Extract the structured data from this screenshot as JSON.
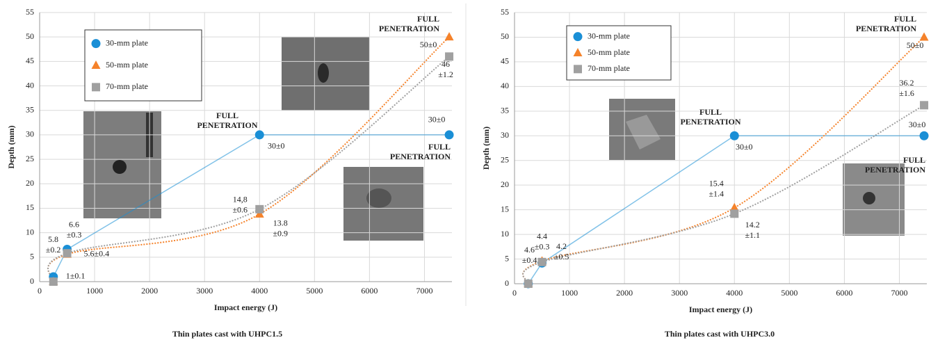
{
  "chart_data": [
    {
      "type": "line",
      "title": "Thin plates cast with UHPC1.5",
      "x_label": "Impact energy (J)",
      "y_label": "Depth (mm)",
      "xlim": [
        0,
        7500
      ],
      "xticks": [
        0,
        1000,
        2000,
        3000,
        4000,
        5000,
        6000,
        7000
      ],
      "ylim": [
        0,
        55
      ],
      "yticks": [
        0,
        5,
        10,
        15,
        20,
        25,
        30,
        35,
        40,
        45,
        50,
        55
      ],
      "grid": true,
      "series": [
        {
          "name": "30-mm plate",
          "color": "#1a8fd6",
          "marker": "circle",
          "line_style": "solid",
          "x": [
            250,
            500,
            4000,
            7450
          ],
          "values": [
            1,
            6.6,
            30,
            30
          ],
          "value_labels": [
            [
              "1±0.1"
            ],
            [
              "6.6",
              "±0.3"
            ],
            [
              "30±0"
            ],
            [
              "30±0"
            ]
          ]
        },
        {
          "name": "50-mm plate",
          "color": "#f5822a",
          "marker": "triangle",
          "line_style": "dotted",
          "x": [
            250,
            500,
            4000,
            7450
          ],
          "values": [
            0,
            5.6,
            13.8,
            50
          ],
          "value_labels": [
            null,
            [
              "5.6±0.4"
            ],
            [
              "13.8",
              "±0.9"
            ],
            [
              "50±0"
            ]
          ]
        },
        {
          "name": "70-mm plate",
          "color": "#a0a0a0",
          "marker": "square",
          "line_style": "dotted",
          "x": [
            250,
            500,
            4000,
            7450
          ],
          "values": [
            0,
            5.8,
            14.8,
            46
          ],
          "value_labels": [
            null,
            [
              "5.8",
              "±0.2"
            ],
            [
              "14,8",
              "±0.6"
            ],
            [
              "46",
              "±1.2"
            ]
          ]
        }
      ],
      "annotations": [
        {
          "text": [
            "FULL",
            "PENETRATION"
          ],
          "color": "#1a7ac0"
        },
        {
          "text": [
            "FULL",
            "PENETRATION"
          ],
          "color": "#f5822a"
        },
        {
          "text": [
            "FULL",
            "PENETRATION"
          ],
          "color": "#1a7ac0"
        }
      ]
    },
    {
      "type": "line",
      "title": "Thin plates cast with UHPC3.0",
      "x_label": "Impact energy (J)",
      "y_label": "Depth (mm)",
      "xlim": [
        0,
        7500
      ],
      "xticks": [
        0,
        1000,
        2000,
        3000,
        4000,
        5000,
        6000,
        7000
      ],
      "ylim": [
        0,
        55
      ],
      "yticks": [
        0,
        5,
        10,
        15,
        20,
        25,
        30,
        35,
        40,
        45,
        50,
        55
      ],
      "grid": true,
      "series": [
        {
          "name": "30-mm plate",
          "color": "#1a8fd6",
          "marker": "circle",
          "line_style": "solid",
          "x": [
            250,
            500,
            4000,
            7450
          ],
          "values": [
            0,
            4.2,
            30,
            30
          ],
          "value_labels": [
            null,
            [
              "4.2",
              "±0.5"
            ],
            [
              "30±0"
            ],
            [
              "30±0"
            ]
          ]
        },
        {
          "name": "50-mm plate",
          "color": "#f5822a",
          "marker": "triangle",
          "line_style": "dotted",
          "x": [
            250,
            500,
            4000,
            7450
          ],
          "values": [
            0,
            4.6,
            15.4,
            50
          ],
          "value_labels": [
            null,
            [
              "4.6",
              "±0.4"
            ],
            [
              "15.4",
              "±1.4"
            ],
            [
              "50±0"
            ]
          ]
        },
        {
          "name": "70-mm plate",
          "color": "#a0a0a0",
          "marker": "square",
          "line_style": "dotted",
          "x": [
            250,
            500,
            4000,
            7450
          ],
          "values": [
            0,
            4.4,
            14.2,
            36.2
          ],
          "value_labels": [
            null,
            [
              "4.4",
              "±0.3"
            ],
            [
              "14.2",
              "±1.1"
            ],
            [
              "36.2",
              "±1.6"
            ]
          ]
        }
      ],
      "annotations": [
        {
          "text": [
            "FULL",
            "PENETRATION"
          ],
          "color": "#1a7ac0"
        },
        {
          "text": [
            "FULL",
            "PENETRATION"
          ],
          "color": "#f5822a"
        },
        {
          "text": [
            "FULL",
            "PENETRATION"
          ],
          "color": "#1a7ac0"
        }
      ]
    }
  ]
}
